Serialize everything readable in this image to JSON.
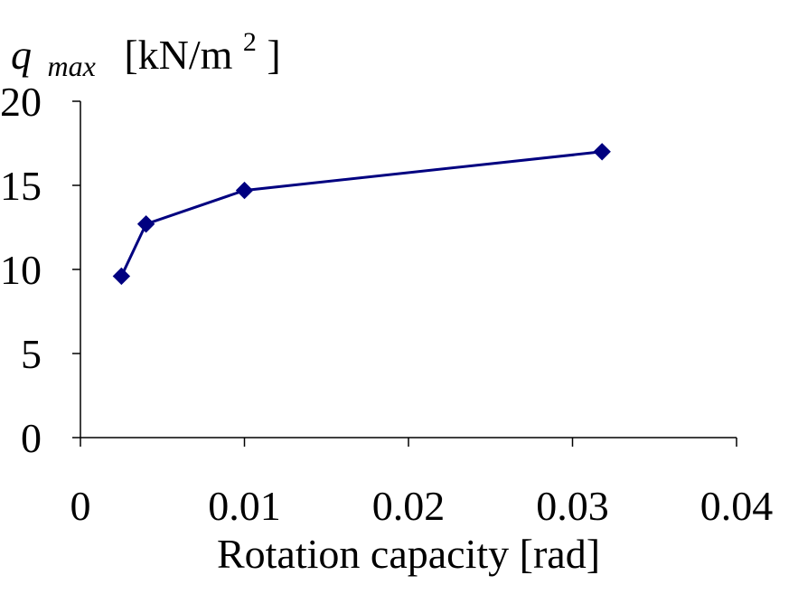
{
  "chart_data": {
    "type": "line",
    "xlabel": "Rotation capacity [rad]",
    "ylabel": {
      "symbol": "q",
      "subscript": "max",
      "unit_prefix": "[kN/m",
      "unit_exponent": "2",
      "unit_suffix": "]"
    },
    "xlim": [
      0,
      0.04
    ],
    "ylim": [
      0,
      20
    ],
    "xticks": [
      {
        "value": 0,
        "label": "0"
      },
      {
        "value": 0.01,
        "label": "0.01"
      },
      {
        "value": 0.02,
        "label": "0.02"
      },
      {
        "value": 0.03,
        "label": "0.03"
      },
      {
        "value": 0.04,
        "label": "0.04"
      }
    ],
    "yticks": [
      {
        "value": 0,
        "label": "0"
      },
      {
        "value": 5,
        "label": "5"
      },
      {
        "value": 10,
        "label": "10"
      },
      {
        "value": 15,
        "label": "15"
      },
      {
        "value": 20,
        "label": "20"
      }
    ],
    "grid": false,
    "legend": "none",
    "series": [
      {
        "color": "#000080",
        "marker": "diamond",
        "points": [
          {
            "x": 0.0025,
            "y": 9.6
          },
          {
            "x": 0.004,
            "y": 12.7
          },
          {
            "x": 0.01,
            "y": 14.7
          },
          {
            "x": 0.0318,
            "y": 17.0
          }
        ]
      }
    ]
  }
}
